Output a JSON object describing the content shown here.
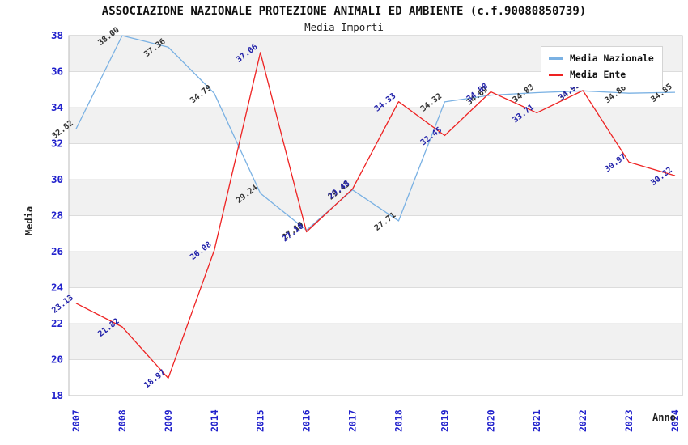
{
  "header": {
    "title": "ASSOCIAZIONE NAZIONALE PROTEZIONE ANIMALI ED AMBIENTE (c.f.90080850739)",
    "subtitle": "Media Importi"
  },
  "axes": {
    "y_label": "Media",
    "x_label": "Anno",
    "tick_color": "#2222cc"
  },
  "legend": {
    "items": [
      {
        "label": "Media Nazionale",
        "color": "#7ab1e3"
      },
      {
        "label": "Media Ente",
        "color": "#ee2222"
      }
    ]
  },
  "colors": {
    "band_gray": "#f1f1f1",
    "gridline": "#dcdcdc",
    "plot_border": "#bbbbbb",
    "blue_series": "#7ab1e3",
    "red_series": "#ee2222",
    "blue_series_label": "#333333",
    "red_series_label": "#2222aa"
  },
  "chart_data": {
    "type": "line",
    "title": "ASSOCIAZIONE NAZIONALE PROTEZIONE ANIMALI ED AMBIENTE (c.f.90080850739)",
    "subtitle": "Media Importi",
    "xlabel": "Anno",
    "ylabel": "Media",
    "x": [
      "2007",
      "2008",
      "2009",
      "2014",
      "2015",
      "2016",
      "2017",
      "2018",
      "2019",
      "2020",
      "2021",
      "2022",
      "2023",
      "2024"
    ],
    "series": [
      {
        "name": "Media Nazionale",
        "color": "#7ab1e3",
        "label_color": "#333333",
        "values": [
          32.82,
          38.0,
          37.36,
          34.79,
          29.24,
          27.19,
          29.43,
          27.71,
          34.32,
          34.69,
          34.83,
          34.93,
          34.8,
          34.85
        ]
      },
      {
        "name": "Media Ente",
        "color": "#ee2222",
        "label_color": "#2222aa",
        "values": [
          23.13,
          21.82,
          18.97,
          26.08,
          37.06,
          27.1,
          29.48,
          34.33,
          32.45,
          34.88,
          33.71,
          34.95,
          30.97,
          30.22
        ]
      }
    ],
    "ylim": [
      18,
      38
    ],
    "ytick_step": 2,
    "grid": "horizontal",
    "band_rows": "alternating-gray",
    "legend_position": "top-right",
    "point_labels": "values shown rotated next to each point, 2 decimals"
  }
}
